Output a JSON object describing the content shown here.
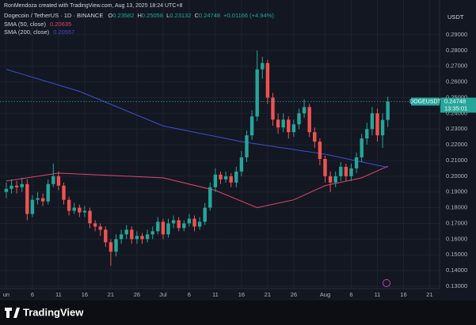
{
  "chart_data": {
    "type": "candlestick",
    "watermark": "RonMendoza created with TradingView.com, Aug 13, 2025 18:24 UTC+8",
    "title": "Dogecoin / TetherUS · 1D · BINANCE",
    "ohlc_labels": [
      "O",
      "H",
      "L",
      "C"
    ],
    "change_text": "+0.01166 (+4.94%)",
    "currency": "USDT",
    "countdown": "13:35:01",
    "brand": "TradingView",
    "grid": true,
    "xlim": [
      -1.2,
      82.9
    ],
    "xticks": [
      {
        "value": 0,
        "label": "un"
      },
      {
        "value": 5,
        "label": "6"
      },
      {
        "value": 10,
        "label": "11"
      },
      {
        "value": 15,
        "label": "16"
      },
      {
        "value": 20,
        "label": "21"
      },
      {
        "value": 25,
        "label": "26"
      },
      {
        "value": 30,
        "label": "Jul"
      },
      {
        "value": 35,
        "label": "6"
      },
      {
        "value": 40,
        "label": "11"
      },
      {
        "value": 45,
        "label": "16"
      },
      {
        "value": 50,
        "label": "21"
      },
      {
        "value": 55,
        "label": "26"
      },
      {
        "value": 61,
        "label": "Aug"
      },
      {
        "value": 66,
        "label": "6"
      },
      {
        "value": 71,
        "label": "11"
      },
      {
        "value": 76,
        "label": "16"
      },
      {
        "value": 81,
        "label": "21"
      }
    ],
    "ylim": [
      0.1285,
      0.3121
    ],
    "yticks": [
      {
        "value": 0.13,
        "label": "0.13000"
      },
      {
        "value": 0.14,
        "label": "0.14000"
      },
      {
        "value": 0.15,
        "label": "0.15000"
      },
      {
        "value": 0.16,
        "label": "0.16000"
      },
      {
        "value": 0.17,
        "label": "0.17000"
      },
      {
        "value": 0.18,
        "label": "0.18000"
      },
      {
        "value": 0.19,
        "label": "0.19000"
      },
      {
        "value": 0.2,
        "label": "0.20000"
      },
      {
        "value": 0.21,
        "label": "0.21000"
      },
      {
        "value": 0.22,
        "label": "0.22000"
      },
      {
        "value": 0.23,
        "label": "0.23000"
      },
      {
        "value": 0.24,
        "label": "0.24000"
      },
      {
        "value": 0.25,
        "label": "0.25000"
      },
      {
        "value": 0.26,
        "label": "0.26000"
      },
      {
        "value": 0.27,
        "label": "0.27000"
      },
      {
        "value": 0.28,
        "label": "0.28000"
      },
      {
        "value": 0.29,
        "label": "0.29000"
      }
    ],
    "series": [
      {
        "name": "DOGEUSDT",
        "type": "candlestick",
        "up_color": "#26a69a",
        "down_color": "#ef5350",
        "open": [
          0.19,
          0.192,
          0.194,
          0.193,
          0.195,
          0.176,
          0.185,
          0.186,
          0.184,
          0.195,
          0.2,
          0.194,
          0.185,
          0.178,
          0.18,
          0.177,
          0.178,
          0.17,
          0.168,
          0.166,
          0.158,
          0.152,
          0.16,
          0.163,
          0.166,
          0.16,
          0.162,
          0.16,
          0.163,
          0.165,
          0.171,
          0.163,
          0.17,
          0.172,
          0.167,
          0.17,
          0.173,
          0.168,
          0.171,
          0.18,
          0.193,
          0.201,
          0.198,
          0.2,
          0.196,
          0.203,
          0.212,
          0.226,
          0.238,
          0.268,
          0.272,
          0.25,
          0.236,
          0.231,
          0.236,
          0.228,
          0.233,
          0.24,
          0.244,
          0.228,
          0.222,
          0.211,
          0.2,
          0.196,
          0.2,
          0.206,
          0.2,
          0.205,
          0.212,
          0.224,
          0.23,
          0.24,
          0.226,
          0.23582
        ],
        "high": [
          0.196,
          0.198,
          0.197,
          0.199,
          0.198,
          0.188,
          0.19,
          0.189,
          0.198,
          0.208,
          0.203,
          0.196,
          0.187,
          0.183,
          0.182,
          0.181,
          0.18,
          0.172,
          0.17,
          0.168,
          0.16,
          0.163,
          0.166,
          0.169,
          0.168,
          0.165,
          0.164,
          0.166,
          0.168,
          0.174,
          0.173,
          0.173,
          0.175,
          0.174,
          0.172,
          0.176,
          0.175,
          0.174,
          0.183,
          0.196,
          0.205,
          0.203,
          0.203,
          0.202,
          0.206,
          0.216,
          0.229,
          0.242,
          0.28,
          0.276,
          0.274,
          0.253,
          0.24,
          0.24,
          0.238,
          0.236,
          0.243,
          0.249,
          0.246,
          0.231,
          0.224,
          0.213,
          0.203,
          0.203,
          0.209,
          0.208,
          0.208,
          0.215,
          0.227,
          0.234,
          0.244,
          0.243,
          0.24,
          0.25058
        ],
        "low": [
          0.186,
          0.189,
          0.189,
          0.19,
          0.172,
          0.174,
          0.182,
          0.181,
          0.182,
          0.193,
          0.191,
          0.182,
          0.175,
          0.176,
          0.174,
          0.174,
          0.167,
          0.165,
          0.162,
          0.155,
          0.143,
          0.149,
          0.157,
          0.16,
          0.157,
          0.157,
          0.157,
          0.158,
          0.16,
          0.163,
          0.16,
          0.161,
          0.167,
          0.165,
          0.165,
          0.168,
          0.165,
          0.166,
          0.169,
          0.178,
          0.19,
          0.195,
          0.196,
          0.193,
          0.193,
          0.2,
          0.209,
          0.223,
          0.235,
          0.262,
          0.246,
          0.232,
          0.227,
          0.228,
          0.224,
          0.225,
          0.23,
          0.237,
          0.225,
          0.218,
          0.207,
          0.196,
          0.19,
          0.193,
          0.197,
          0.197,
          0.197,
          0.202,
          0.209,
          0.22,
          0.226,
          0.222,
          0.218,
          0.23132
        ],
        "close": [
          0.192,
          0.194,
          0.193,
          0.195,
          0.176,
          0.185,
          0.186,
          0.184,
          0.195,
          0.2,
          0.194,
          0.185,
          0.178,
          0.18,
          0.177,
          0.178,
          0.17,
          0.168,
          0.166,
          0.158,
          0.152,
          0.16,
          0.163,
          0.166,
          0.16,
          0.162,
          0.16,
          0.163,
          0.165,
          0.171,
          0.163,
          0.17,
          0.172,
          0.167,
          0.17,
          0.173,
          0.168,
          0.171,
          0.18,
          0.193,
          0.201,
          0.198,
          0.2,
          0.196,
          0.203,
          0.212,
          0.226,
          0.238,
          0.268,
          0.272,
          0.25,
          0.236,
          0.231,
          0.236,
          0.228,
          0.233,
          0.24,
          0.244,
          0.228,
          0.222,
          0.211,
          0.2,
          0.196,
          0.2,
          0.206,
          0.2,
          0.205,
          0.212,
          0.224,
          0.23,
          0.24,
          0.226,
          0.23582,
          0.24748
        ]
      },
      {
        "name": "SMA (50, close)",
        "type": "line",
        "color": "#e0466a",
        "x": [
          0,
          10,
          30,
          40,
          48,
          55,
          61,
          68,
          73
        ],
        "values": [
          0.197,
          0.202,
          0.199,
          0.191,
          0.18,
          0.185,
          0.194,
          0.199,
          0.20635
        ]
      },
      {
        "name": "SMA (200, close)",
        "type": "line",
        "color": "#3d4fd6",
        "x": [
          0,
          14,
          30,
          45,
          61,
          73
        ],
        "values": [
          0.268,
          0.254,
          0.232,
          0.222,
          0.214,
          0.20557
        ]
      }
    ]
  }
}
